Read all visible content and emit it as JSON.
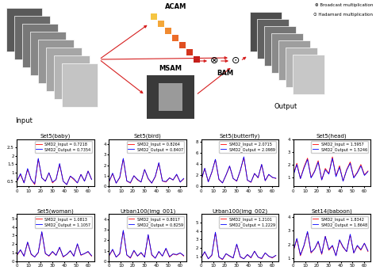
{
  "diagram": {
    "input_label": "Input",
    "output_label": "Output",
    "modules": {
      "channel": "ACAM",
      "spatial": "MSAM",
      "fusion": "BAM"
    },
    "operators": [
      {
        "symbol": "⊗",
        "label": "Broadcast multiplication"
      },
      {
        "symbol": "⊙",
        "label": "Hadamard multiplication"
      }
    ]
  },
  "chart_data": [
    {
      "type": "line",
      "title": "Set5(baby)",
      "x": [
        0,
        3,
        6,
        9,
        12,
        15,
        18,
        21,
        24,
        27,
        30,
        33,
        36,
        39,
        42,
        45,
        48,
        51,
        54,
        57,
        60,
        63
      ],
      "xlim": [
        0,
        65
      ],
      "xticks": [
        0,
        10,
        20,
        30,
        40,
        50,
        60
      ],
      "ylim": [
        0.2,
        3.0
      ],
      "yticks": [
        0.5,
        1,
        1.5,
        2,
        2.5
      ],
      "legend": "upper right",
      "series": [
        {
          "name": "SMD2_Input = 0.7218",
          "color": "#ff0000",
          "values": [
            0.5,
            0.9,
            0.4,
            1.2,
            0.6,
            0.3,
            1.8,
            0.7,
            0.5,
            1.0,
            0.4,
            0.6,
            1.5,
            0.5,
            0.3,
            0.8,
            0.6,
            0.4,
            0.9,
            0.5,
            1.1,
            0.6
          ]
        },
        {
          "name": "SMD2_Output = 0.7354",
          "color": "#0000ff",
          "values": [
            0.5,
            0.95,
            0.4,
            1.25,
            0.6,
            0.35,
            1.85,
            0.7,
            0.5,
            1.0,
            0.45,
            0.6,
            1.55,
            0.5,
            0.3,
            0.8,
            0.65,
            0.4,
            0.9,
            0.5,
            1.1,
            0.6
          ]
        }
      ]
    },
    {
      "type": "line",
      "title": "Set5(bird)",
      "x": [
        0,
        3,
        6,
        9,
        12,
        15,
        18,
        21,
        24,
        27,
        30,
        33,
        36,
        39,
        42,
        45,
        48,
        51,
        54,
        57,
        60,
        63
      ],
      "xlim": [
        0,
        65
      ],
      "xticks": [
        0,
        10,
        20,
        30,
        40,
        50,
        60
      ],
      "ylim": [
        0,
        4.5
      ],
      "yticks": [
        0,
        1,
        2,
        3,
        4
      ],
      "legend": "upper right",
      "series": [
        {
          "name": "SMD2_Input = 0.8264",
          "color": "#ff0000",
          "values": [
            0.4,
            1.2,
            0.3,
            0.8,
            2.6,
            0.5,
            0.3,
            1.0,
            0.6,
            0.4,
            1.6,
            0.7,
            0.3,
            0.9,
            2.2,
            0.5,
            0.4,
            0.8,
            0.6,
            1.1,
            0.4,
            0.7
          ]
        },
        {
          "name": "SMD2_Output = 0.8407",
          "color": "#0000ff",
          "values": [
            0.45,
            1.25,
            0.3,
            0.85,
            2.65,
            0.5,
            0.35,
            1.0,
            0.65,
            0.4,
            1.6,
            0.75,
            0.3,
            0.95,
            2.25,
            0.5,
            0.45,
            0.8,
            0.6,
            1.15,
            0.4,
            0.75
          ]
        }
      ]
    },
    {
      "type": "line",
      "title": "Set5(butterfly)",
      "x": [
        0,
        3,
        6,
        9,
        12,
        15,
        18,
        21,
        24,
        27,
        30,
        33,
        36,
        39,
        42,
        45,
        48,
        51,
        54,
        57,
        60,
        63
      ],
      "xlim": [
        0,
        65
      ],
      "xticks": [
        0,
        10,
        20,
        30,
        40,
        50,
        60
      ],
      "ylim": [
        0,
        8.5
      ],
      "yticks": [
        0,
        2,
        4,
        6,
        8
      ],
      "legend": "upper right",
      "series": [
        {
          "name": "SMD2_Input = 2.0715",
          "color": "#ff0000",
          "values": [
            1.0,
            3.2,
            0.8,
            2.5,
            4.8,
            1.2,
            0.6,
            2.0,
            3.6,
            1.4,
            0.9,
            2.8,
            5.2,
            1.1,
            0.7,
            2.3,
            1.5,
            3.9,
            1.0,
            2.1,
            1.6,
            1.4
          ]
        },
        {
          "name": "SMD2_Output = 2.0989",
          "color": "#0000ff",
          "values": [
            1.05,
            3.25,
            0.8,
            2.55,
            4.85,
            1.25,
            0.6,
            2.05,
            3.65,
            1.4,
            0.95,
            2.85,
            5.3,
            1.1,
            0.75,
            2.3,
            1.55,
            3.95,
            1.0,
            2.15,
            1.6,
            1.45
          ]
        }
      ]
    },
    {
      "type": "line",
      "title": "Set5(head)",
      "x": [
        0,
        3,
        6,
        9,
        12,
        15,
        18,
        21,
        24,
        27,
        30,
        33,
        36,
        39,
        42,
        45,
        48,
        51,
        54,
        57,
        60,
        63
      ],
      "xlim": [
        0,
        65
      ],
      "xticks": [
        0,
        10,
        20,
        30,
        40,
        50,
        60
      ],
      "ylim": [
        0.3,
        4.0
      ],
      "yticks": [
        1,
        2,
        3,
        4
      ],
      "legend": "upper right",
      "series": [
        {
          "name": "SMD2_Input = 1.5957",
          "color": "#ff0000",
          "values": [
            1.2,
            2.1,
            0.9,
            1.8,
            2.5,
            1.0,
            1.5,
            2.3,
            0.8,
            1.7,
            1.3,
            2.6,
            1.1,
            1.9,
            0.7,
            1.6,
            2.2,
            1.0,
            1.4,
            2.0,
            1.2,
            1.5
          ]
        },
        {
          "name": "SMD2_Output = 1.5246",
          "color": "#0000ff",
          "values": [
            1.15,
            2.0,
            0.9,
            1.7,
            2.4,
            0.95,
            1.45,
            2.2,
            0.8,
            1.6,
            1.25,
            2.5,
            1.05,
            1.8,
            0.7,
            1.55,
            2.1,
            0.95,
            1.35,
            1.9,
            1.15,
            1.45
          ]
        }
      ]
    },
    {
      "type": "line",
      "title": "Set5(woman)",
      "x": [
        0,
        3,
        6,
        9,
        12,
        15,
        18,
        21,
        24,
        27,
        30,
        33,
        36,
        39,
        42,
        45,
        48,
        51,
        54,
        57,
        60,
        63
      ],
      "xlim": [
        0,
        65
      ],
      "xticks": [
        0,
        10,
        20,
        30,
        40,
        50,
        60
      ],
      "ylim": [
        0,
        5.5
      ],
      "yticks": [
        0,
        1,
        2,
        3,
        4,
        5
      ],
      "legend": "upper right",
      "series": [
        {
          "name": "SMD2_Input = 1.0813",
          "color": "#ff0000",
          "values": [
            0.7,
            1.3,
            0.6,
            2.2,
            0.8,
            0.5,
            1.0,
            3.4,
            0.9,
            0.6,
            1.1,
            0.7,
            1.6,
            0.5,
            0.8,
            1.2,
            0.6,
            2.0,
            0.7,
            0.9,
            1.1,
            0.6
          ]
        },
        {
          "name": "SMD2_Output = 1.1057",
          "color": "#0000ff",
          "values": [
            0.75,
            1.35,
            0.6,
            2.25,
            0.85,
            0.5,
            1.05,
            3.45,
            0.9,
            0.65,
            1.15,
            0.7,
            1.65,
            0.55,
            0.8,
            1.25,
            0.6,
            2.05,
            0.75,
            0.9,
            1.15,
            0.65
          ]
        }
      ]
    },
    {
      "type": "line",
      "title": "Urban100(img_001)",
      "x": [
        0,
        3,
        6,
        9,
        12,
        15,
        18,
        21,
        24,
        27,
        30,
        33,
        36,
        39,
        42,
        45,
        48,
        51,
        54,
        57,
        60,
        63
      ],
      "xlim": [
        0,
        65
      ],
      "xticks": [
        0,
        10,
        20,
        30,
        40,
        50,
        60
      ],
      "ylim": [
        0,
        4.5
      ],
      "yticks": [
        0,
        1,
        2,
        3,
        4
      ],
      "legend": "upper right",
      "series": [
        {
          "name": "SMD2_Input = 0.8017",
          "color": "#ff0000",
          "values": [
            0.5,
            1.1,
            0.4,
            0.7,
            2.9,
            0.6,
            0.3,
            1.0,
            0.5,
            0.8,
            0.4,
            2.5,
            0.6,
            0.3,
            0.9,
            0.5,
            1.2,
            0.4,
            0.7,
            0.6,
            0.8,
            0.5
          ]
        },
        {
          "name": "SMD2_Output = 0.8259",
          "color": "#0000ff",
          "values": [
            0.55,
            1.15,
            0.4,
            0.75,
            2.95,
            0.6,
            0.35,
            1.05,
            0.5,
            0.85,
            0.4,
            2.55,
            0.65,
            0.3,
            0.95,
            0.5,
            1.25,
            0.45,
            0.7,
            0.65,
            0.8,
            0.55
          ]
        }
      ]
    },
    {
      "type": "line",
      "title": "Urban100(img_002)",
      "x": [
        0,
        3,
        6,
        9,
        12,
        15,
        18,
        21,
        24,
        27,
        30,
        33,
        36,
        39,
        42,
        45,
        48,
        51,
        54,
        57,
        60,
        63
      ],
      "xlim": [
        0,
        65
      ],
      "xticks": [
        0,
        10,
        20,
        30,
        40,
        50,
        60
      ],
      "ylim": [
        0.4,
        6
      ],
      "yticks": [
        1,
        2,
        3,
        4,
        5
      ],
      "legend": "upper right",
      "series": [
        {
          "name": "SMD2_Input = 1.2101",
          "color": "#ff0000",
          "values": [
            0.8,
            1.5,
            0.7,
            1.1,
            3.8,
            0.9,
            0.6,
            1.3,
            1.0,
            0.8,
            2.4,
            0.9,
            0.7,
            1.2,
            0.8,
            1.6,
            0.9,
            0.7,
            1.4,
            1.0,
            0.8,
            1.1
          ]
        },
        {
          "name": "SMD2_Output = 1.2229",
          "color": "#0000ff",
          "values": [
            0.8,
            1.55,
            0.7,
            1.15,
            3.85,
            0.9,
            0.65,
            1.3,
            1.05,
            0.8,
            2.45,
            0.95,
            0.7,
            1.2,
            0.85,
            1.6,
            0.9,
            0.75,
            1.4,
            1.0,
            0.85,
            1.1
          ]
        }
      ]
    },
    {
      "type": "line",
      "title": "Set14(baboon)",
      "x": [
        0,
        3,
        6,
        9,
        12,
        15,
        18,
        21,
        24,
        27,
        30,
        33,
        36,
        39,
        42,
        45,
        48,
        51,
        54,
        57,
        60,
        63
      ],
      "xlim": [
        0,
        65
      ],
      "xticks": [
        0,
        10,
        20,
        30,
        40,
        50,
        60
      ],
      "ylim": [
        0.8,
        4.2
      ],
      "yticks": [
        1,
        2,
        3,
        4
      ],
      "legend": "upper right",
      "series": [
        {
          "name": "SMD2_Input = 1.8342",
          "color": "#ff0000",
          "values": [
            1.5,
            2.4,
            1.2,
            1.9,
            2.9,
            1.4,
            1.7,
            2.2,
            1.3,
            2.6,
            1.6,
            1.9,
            1.2,
            2.3,
            1.8,
            1.5,
            2.7,
            1.4,
            1.9,
            1.6,
            2.1,
            1.5
          ]
        },
        {
          "name": "SMD2_Output = 1.8648",
          "color": "#0000ff",
          "values": [
            1.55,
            2.45,
            1.25,
            1.95,
            2.95,
            1.45,
            1.7,
            2.25,
            1.35,
            2.6,
            1.65,
            1.95,
            1.2,
            2.35,
            1.85,
            1.5,
            2.75,
            1.4,
            1.95,
            1.65,
            2.1,
            1.55
          ]
        }
      ]
    }
  ]
}
